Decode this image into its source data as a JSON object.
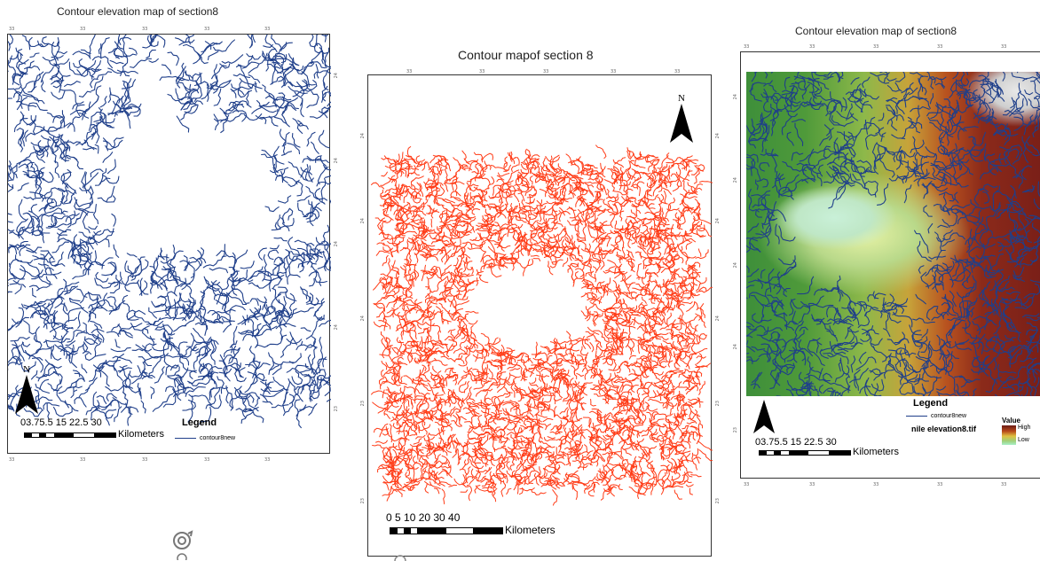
{
  "maps": [
    {
      "title": "Contour elevation map of section8",
      "north_label": "N",
      "scale_numbers": "0 3.75 7.5    15    22.5    30",
      "scale_numbers_display": "03.75.5   15  22.5  30",
      "scale_unit": "Kilometers",
      "legend_title": "Legend",
      "legend_entry": "contour8new",
      "tick": "33",
      "side_tick": "24",
      "side_tick_2": "23",
      "contour_color": "#1f3f8a"
    },
    {
      "title": "Contour mapof section 8",
      "north_label": "N",
      "scale_numbers_display": "0   5  10    20    30    40",
      "scale_unit": "Kilometers",
      "tick": "33",
      "side_tick": "24",
      "side_tick_2": "23",
      "contour_color": "#ff3b16"
    },
    {
      "title": "Contour elevation map of section8",
      "north_label": "N",
      "scale_numbers_display": "03.75.5   15  22.5  30",
      "scale_unit": "Kilometers",
      "legend_title": "Legend",
      "legend_entry": "contour8new",
      "raster_label": "nile elevation8.tif",
      "value_label": "Value",
      "high_label": "High",
      "low_label": "Low",
      "tick": "33",
      "side_tick": "24",
      "side_tick_2": "23",
      "contour_color": "#1f3f8a"
    }
  ]
}
